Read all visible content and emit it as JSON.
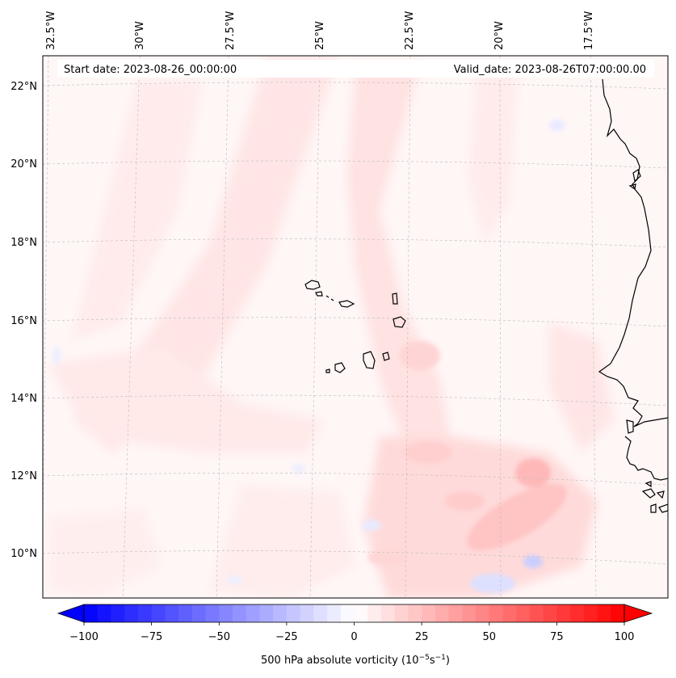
{
  "map": {
    "header": {
      "start_date": "Start date: 2023-08-26_00:00:00",
      "valid_date": "Valid_date: 2023-08-26T07:00:00.00"
    },
    "lon_labels": [
      "32.5°W",
      "30°W",
      "27.5°W",
      "25°W",
      "22.5°W",
      "20°W",
      "17.5°W"
    ],
    "lat_labels": [
      "22°N",
      "20°N",
      "18°N",
      "16°N",
      "14°N",
      "12°N",
      "10°N"
    ],
    "colorbar": {
      "ticks": [
        "−100",
        "−75",
        "−50",
        "−25",
        "0",
        "25",
        "50",
        "75",
        "100"
      ],
      "label_main": "500 hPa absolute vorticity (10",
      "label_exp1": "−5",
      "label_mid": "s",
      "label_exp2": "−1",
      "label_end": ")",
      "range": [
        -100,
        100
      ],
      "levels": 40,
      "neg_color": "#0000ff",
      "pos_color": "#ff0000"
    },
    "colors": {
      "coastline": "#000000",
      "gridline": "#bbbbbb",
      "background": "#fff6f6"
    }
  }
}
